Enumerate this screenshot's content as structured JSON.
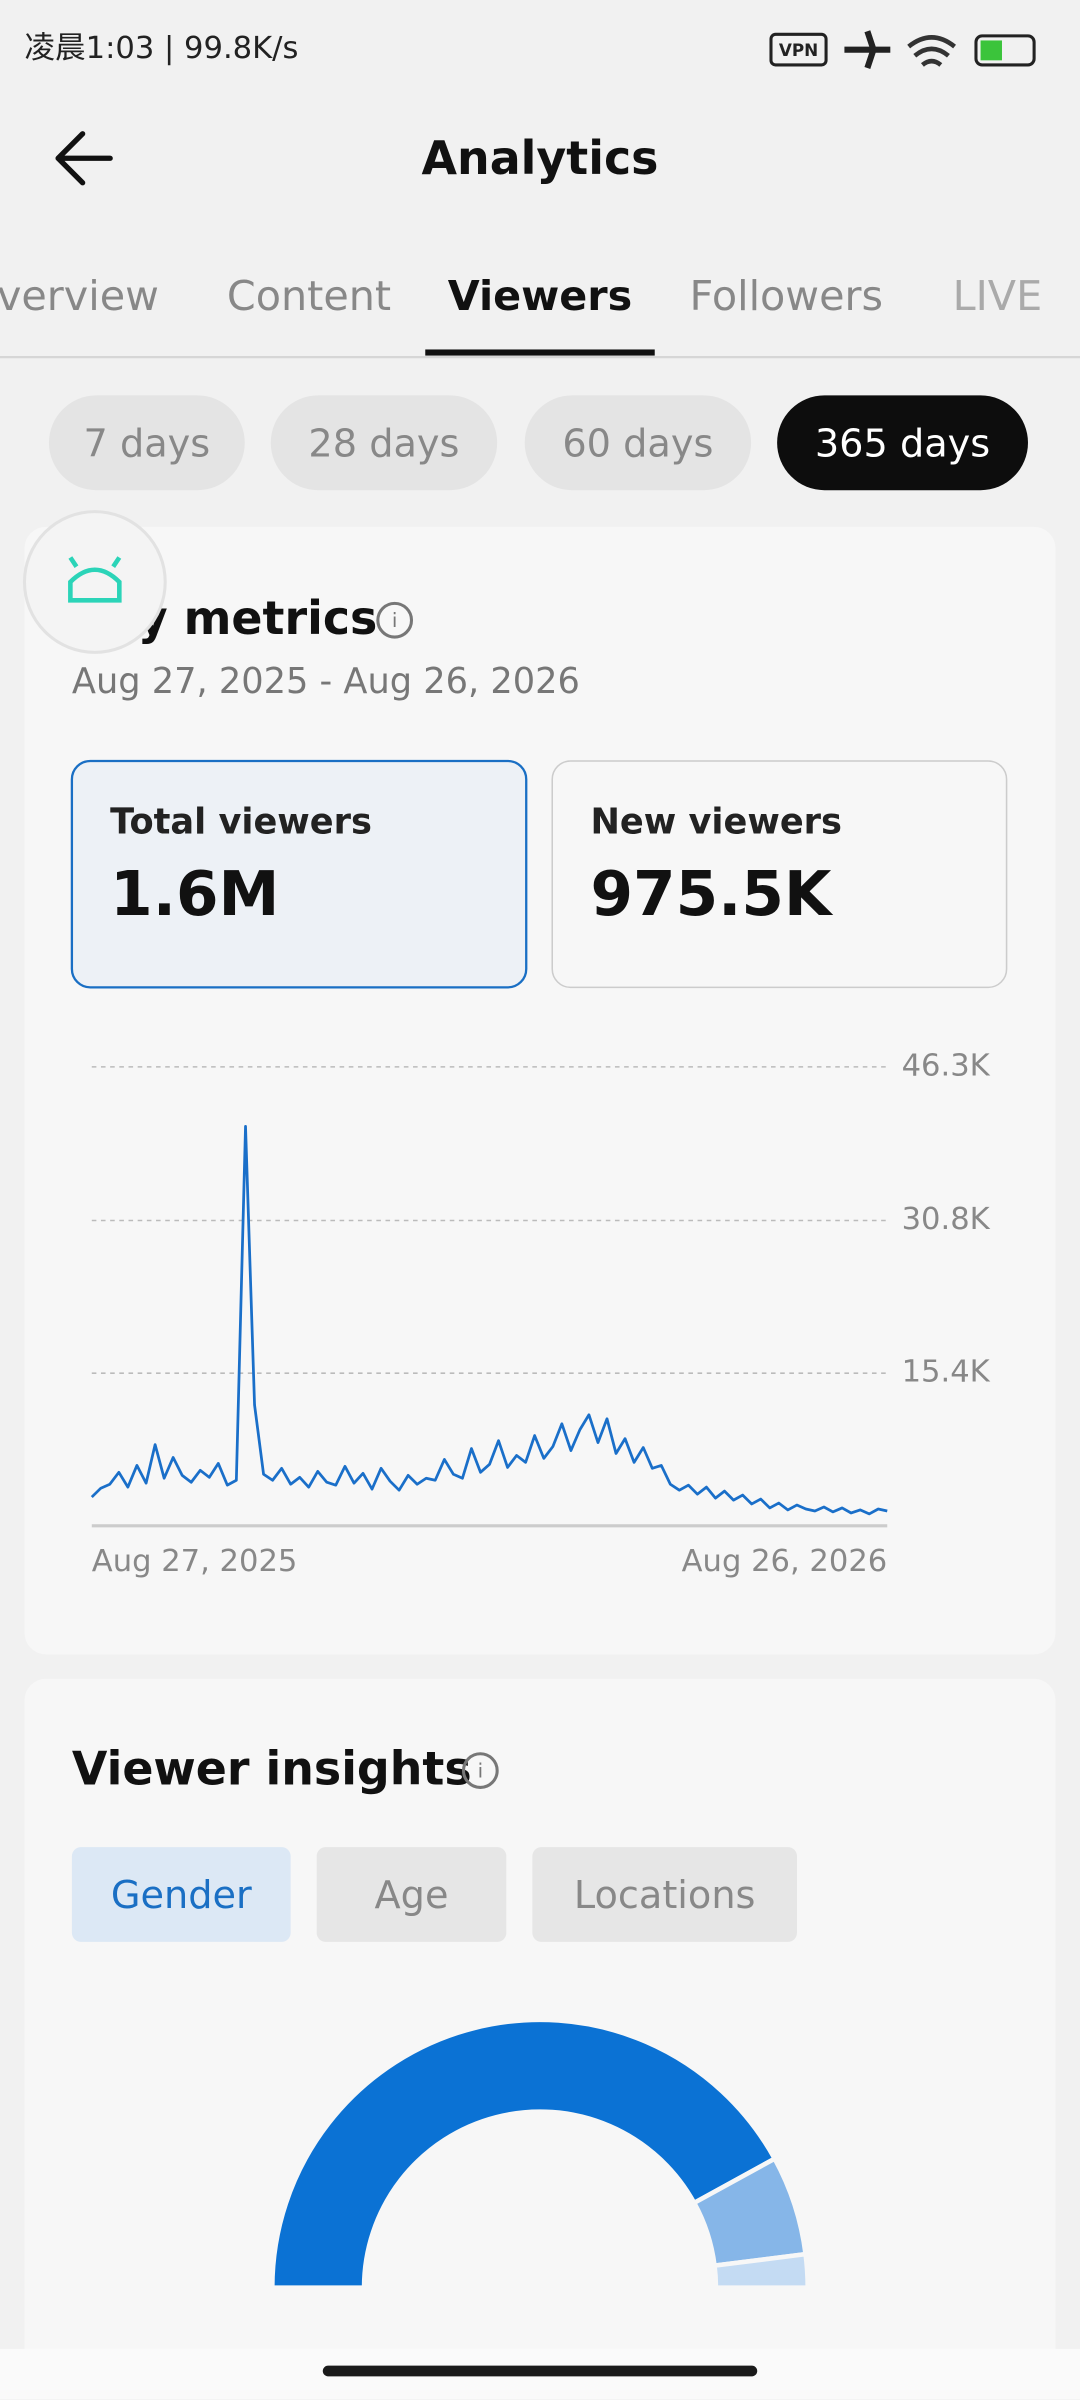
{
  "status_bar": {
    "time": "凌晨1:03 | 99.8K/s",
    "vpn": "VPN"
  },
  "header": {
    "title": "Analytics"
  },
  "tabs": {
    "items": [
      "verview",
      "Content",
      "Viewers",
      "Followers",
      "LIVE"
    ],
    "active": 2
  },
  "ranges": {
    "items": [
      "7 days",
      "28 days",
      "60 days",
      "365 days"
    ],
    "active": 3
  },
  "key_metrics": {
    "title": "Key metrics",
    "date_range": "Aug 27, 2025 - Aug 26, 2026",
    "cards": [
      {
        "label": "Total viewers",
        "value": "1.6M"
      },
      {
        "label": "New viewers",
        "value": "975.5K"
      }
    ]
  },
  "insights": {
    "title": "Viewer insights",
    "tabs": [
      "Gender",
      "Age",
      "Locations"
    ],
    "active": 0
  },
  "chart_data": [
    {
      "type": "line",
      "color": "#1a6fc9",
      "grid": true,
      "xlabels": [
        "Aug 27, 2025",
        "Aug 26, 2026"
      ],
      "ylim": [
        0,
        46300
      ],
      "yticks": [
        {
          "value": 15400,
          "label": "15.4K"
        },
        {
          "value": 30800,
          "label": "30.8K"
        },
        {
          "value": 46300,
          "label": "46.3K"
        }
      ],
      "values": [
        2900,
        3800,
        4200,
        5400,
        3900,
        6100,
        4300,
        8200,
        4800,
        6900,
        5100,
        4400,
        5600,
        4900,
        6300,
        4100,
        4600,
        40300,
        12200,
        5200,
        4600,
        5800,
        4200,
        4900,
        3900,
        5500,
        4400,
        4100,
        6000,
        4300,
        5300,
        3700,
        5800,
        4500,
        3600,
        5100,
        4200,
        4800,
        4600,
        6700,
        5200,
        4800,
        7800,
        5400,
        6200,
        8600,
        5900,
        7100,
        6400,
        9100,
        6800,
        8000,
        10300,
        7600,
        9700,
        11200,
        8400,
        10800,
        7300,
        8800,
        6400,
        7900,
        5800,
        6100,
        4200,
        3600,
        4100,
        3200,
        3900,
        2800,
        3500,
        2600,
        3100,
        2200,
        2700,
        1800,
        2300,
        1600,
        2100,
        1700,
        1500,
        1900,
        1400,
        1800,
        1300,
        1600,
        1200,
        1700,
        1500
      ]
    },
    {
      "type": "donut",
      "values": [
        84,
        12,
        4
      ],
      "colors": [
        "#0b72d4",
        "#86b6e8",
        "#c4dbf3"
      ]
    }
  ]
}
